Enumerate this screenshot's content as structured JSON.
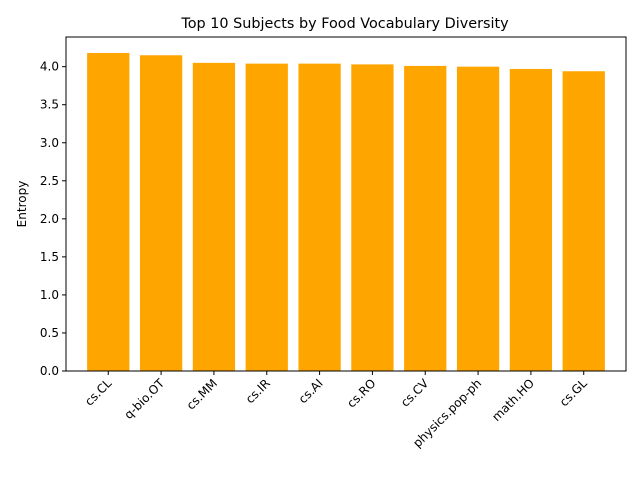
{
  "chart_data": {
    "type": "bar",
    "title": "Top 10 Subjects by Food Vocabulary Diversity",
    "xlabel": "",
    "ylabel": "Entropy",
    "categories": [
      "cs.CL",
      "q-bio.OT",
      "cs.MM",
      "cs.IR",
      "cs.AI",
      "cs.RO",
      "cs.CV",
      "physics.pop-ph",
      "math.HO",
      "cs.GL"
    ],
    "values": [
      4.18,
      4.15,
      4.05,
      4.04,
      4.04,
      4.03,
      4.01,
      4.0,
      3.97,
      3.94
    ],
    "ylim": [
      0,
      4.39
    ],
    "yticks": [
      0.0,
      0.5,
      1.0,
      1.5,
      2.0,
      2.5,
      3.0,
      3.5,
      4.0
    ],
    "ytick_labels": [
      "0.0",
      "0.5",
      "1.0",
      "1.5",
      "2.0",
      "2.5",
      "3.0",
      "3.5",
      "4.0"
    ],
    "bar_color": "#ffa500",
    "grid": false,
    "legend": "none"
  }
}
